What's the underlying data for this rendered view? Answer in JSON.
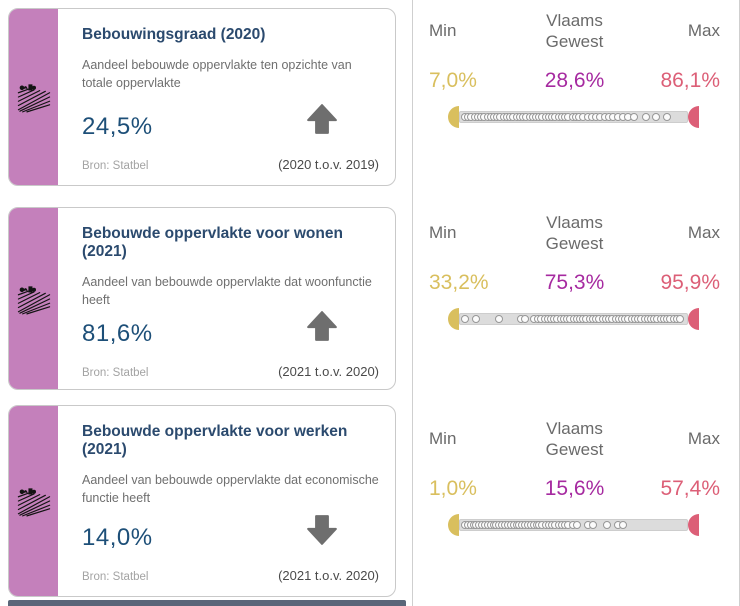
{
  "colors": {
    "purple": "#c480bb",
    "navy": "#2b4a6e",
    "value": "#1d4f78",
    "min": "#d9bf5e",
    "region": "#a62aa0",
    "max": "#dc5f77",
    "track": "#dcdcdc",
    "divider": "#cfcfcf",
    "bottombar": "#5a6679"
  },
  "cards": [
    {
      "title": "Bebouwingsgraad (2020)",
      "description": "Aandeel bebouwde oppervlakte ten opzichte van totale oppervlakte",
      "value": "24,5%",
      "trend": "up",
      "source": "Bron: Statbel",
      "comparison": "(2020 t.o.v. 2019)"
    },
    {
      "title": "Bebouwde oppervlakte voor wonen (2021)",
      "description": "Aandeel van bebouwde oppervlakte dat woonfunctie heeft",
      "value": "81,6%",
      "trend": "up",
      "source": "Bron: Statbel",
      "comparison": "(2021 t.o.v. 2020)"
    },
    {
      "title": "Bebouwde oppervlakte voor werken (2021)",
      "description": "Aandeel van bebouwde oppervlakte dat economische functie heeft",
      "value": "14,0%",
      "trend": "down",
      "source": "Bron: Statbel",
      "comparison": "(2021 t.o.v. 2020)"
    }
  ],
  "panels": [
    {
      "min_label": "Min",
      "region_label": "Vlaams Gewest",
      "max_label": "Max",
      "min": "7,0%",
      "region": "28,6%",
      "max": "86,1%",
      "distribution": [
        0,
        1.5,
        3,
        4.5,
        6,
        7.5,
        9,
        10.5,
        12,
        13.5,
        15,
        16.5,
        18,
        19.5,
        21,
        22.5,
        24,
        25.5,
        27,
        28.5,
        30,
        31.5,
        33,
        34.5,
        36,
        37.5,
        39,
        40.5,
        42,
        43.5,
        45,
        46.5,
        48,
        50,
        51.5,
        53,
        55,
        57,
        59,
        61,
        63,
        65,
        67,
        69,
        71,
        73.5,
        76,
        78.5,
        84,
        89,
        94
      ]
    },
    {
      "min_label": "Min",
      "region_label": "Vlaams Gewest",
      "max_label": "Max",
      "min": "33,2%",
      "region": "75,3%",
      "max": "95,9%",
      "distribution": [
        0,
        5,
        16,
        26,
        28,
        32,
        34,
        35.5,
        37,
        38.5,
        40,
        41.5,
        43,
        44.5,
        46,
        47.5,
        49,
        50.5,
        52,
        53.5,
        55,
        56.5,
        58,
        59.5,
        61,
        62.5,
        64,
        65.5,
        67,
        68.5,
        70,
        71.5,
        73,
        74.5,
        76,
        77.5,
        79,
        80.5,
        82,
        83.5,
        85,
        86.5,
        88,
        89.5,
        91,
        92.5,
        94,
        95.5,
        97,
        98.5,
        100
      ]
    },
    {
      "min_label": "Min",
      "region_label": "Vlaams Gewest",
      "max_label": "Max",
      "min": "1,0%",
      "region": "15,6%",
      "max": "57,4%",
      "distribution": [
        0,
        1.3,
        2.6,
        4,
        5.3,
        6.6,
        8,
        9.3,
        10.6,
        12,
        13.3,
        14.6,
        16,
        17.3,
        18.6,
        20,
        21.3,
        22.6,
        24,
        25.3,
        26.6,
        28,
        29.3,
        30.6,
        32,
        33.3,
        34.6,
        36,
        37.5,
        39,
        40.5,
        42,
        43.5,
        45,
        46.5,
        48,
        50,
        52,
        57,
        59.5,
        66,
        71,
        73.5
      ]
    }
  ],
  "chart_data": [
    {
      "type": "strip",
      "title": "Bebouwingsgraad (2020) spreiding",
      "min": 7.0,
      "region": 28.6,
      "max": 86.1,
      "unit": "%",
      "legend": [
        "Min",
        "Vlaams Gewest",
        "Max"
      ]
    },
    {
      "type": "strip",
      "title": "Bebouwde oppervlakte voor wonen (2021) spreiding",
      "min": 33.2,
      "region": 75.3,
      "max": 95.9,
      "unit": "%",
      "legend": [
        "Min",
        "Vlaams Gewest",
        "Max"
      ]
    },
    {
      "type": "strip",
      "title": "Bebouwde oppervlakte voor werken (2021) spreiding",
      "min": 1.0,
      "region": 15.6,
      "max": 57.4,
      "unit": "%",
      "legend": [
        "Min",
        "Vlaams Gewest",
        "Max"
      ]
    }
  ]
}
